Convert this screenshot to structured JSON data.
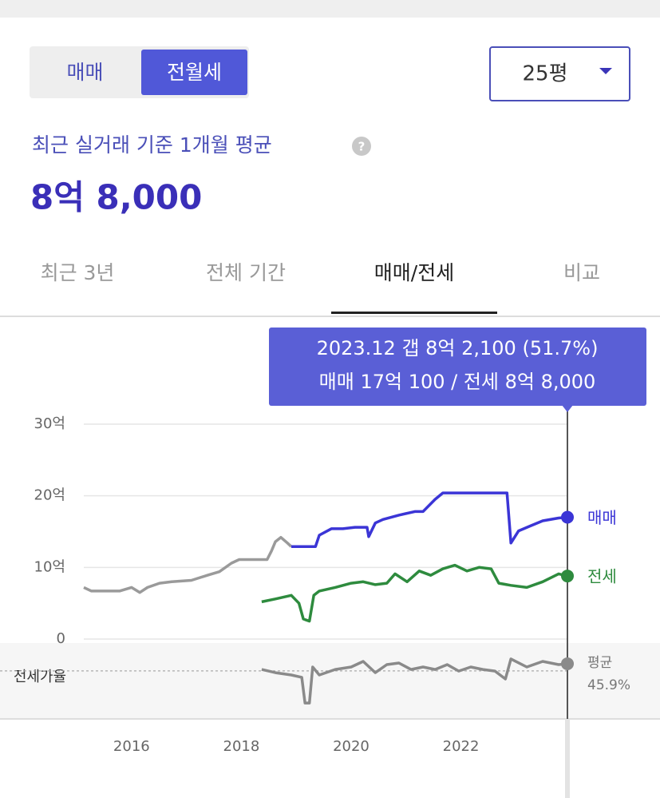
{
  "toggle": {
    "options": [
      "매매",
      "전월세"
    ],
    "active": 1
  },
  "dropdown": "25평",
  "summary": {
    "caption": "최근 실거래 기준 1개월 평균",
    "value": "8억 8,000"
  },
  "tabs": {
    "items": [
      "최근 3년",
      "전체 기간",
      "매매/전세",
      "비교"
    ],
    "active": 2
  },
  "tooltip": [
    "2023.12  갭 8억 2,100 (51.7%)",
    "매매 17억 100 / 전세 8억 8,000"
  ],
  "chart_data": {
    "type": "line",
    "xlim": [
      2015.13,
      2023.94
    ],
    "xticks": [
      2016,
      2018,
      2020,
      2022
    ],
    "ylim": [
      0,
      30
    ],
    "yticks": [
      0,
      {
        "value": 10,
        "label": "10억"
      },
      {
        "value": 20,
        "label": "20억"
      },
      {
        "value": 30,
        "label": "30억"
      }
    ],
    "grid": true,
    "series": [
      {
        "color": "#9a9a9a",
        "x": [
          2015.13,
          2015.27,
          2015.78,
          2016.0,
          2016.15,
          2016.29,
          2016.51,
          2016.73,
          2017.09,
          2017.38,
          2017.6,
          2017.82,
          2017.96,
          2018.47,
          2018.55,
          2018.62,
          2018.72,
          2018.84,
          2018.91
        ],
        "values": [
          7.2,
          6.7,
          6.7,
          7.2,
          6.5,
          7.2,
          7.8,
          8.0,
          8.2,
          8.9,
          9.4,
          10.6,
          11.1,
          11.1,
          12.3,
          13.6,
          14.2,
          13.4,
          12.9
        ]
      },
      {
        "name": "매매",
        "color": "#3b35d6",
        "x": [
          2018.91,
          2019.35,
          2019.42,
          2019.64,
          2019.85,
          2020.07,
          2020.29,
          2020.32,
          2020.44,
          2020.58,
          2020.87,
          2021.16,
          2021.31,
          2021.53,
          2021.67,
          2022.33,
          2022.84,
          2022.91,
          2023.05,
          2023.27,
          2023.49,
          2023.78,
          2023.94
        ],
        "values": [
          12.9,
          12.9,
          14.5,
          15.4,
          15.4,
          15.6,
          15.6,
          14.3,
          16.2,
          16.7,
          17.3,
          17.8,
          17.8,
          19.5,
          20.4,
          20.4,
          20.4,
          13.4,
          15.1,
          15.8,
          16.5,
          16.9,
          17.01
        ]
      },
      {
        "name": "전세",
        "color": "#2e8b3e",
        "x": [
          2018.37,
          2018.62,
          2018.91,
          2019.05,
          2019.13,
          2019.24,
          2019.32,
          2019.42,
          2019.71,
          2020.0,
          2020.22,
          2020.44,
          2020.65,
          2020.8,
          2021.02,
          2021.24,
          2021.45,
          2021.67,
          2021.89,
          2022.11,
          2022.33,
          2022.55,
          2022.69,
          2022.91,
          2023.2,
          2023.49,
          2023.78,
          2023.94
        ],
        "values": [
          5.2,
          5.6,
          6.1,
          5.0,
          2.8,
          2.5,
          6.1,
          6.7,
          7.2,
          7.8,
          8.0,
          7.6,
          7.8,
          9.1,
          8.0,
          9.5,
          8.9,
          9.8,
          10.3,
          9.5,
          10.0,
          9.8,
          7.8,
          7.5,
          7.2,
          8.0,
          9.1,
          8.8
        ]
      }
    ],
    "ratio": {
      "label": "전세가율",
      "color": "#8a8a8a",
      "ylim": [
        7,
        68.5
      ],
      "x": [
        2018.37,
        2018.62,
        2018.91,
        2019.1,
        2019.16,
        2019.24,
        2019.3,
        2019.42,
        2019.71,
        2020.0,
        2020.22,
        2020.44,
        2020.65,
        2020.87,
        2021.09,
        2021.31,
        2021.53,
        2021.75,
        2021.96,
        2022.18,
        2022.4,
        2022.62,
        2022.81,
        2022.91,
        2023.2,
        2023.49,
        2023.78,
        2023.94
      ],
      "values": [
        47.1,
        44.5,
        42.6,
        40.7,
        19.9,
        19.9,
        49.1,
        42.6,
        47.1,
        49.1,
        53.6,
        44.5,
        51.0,
        52.3,
        47.1,
        49.1,
        47.1,
        51.0,
        45.8,
        49.1,
        47.1,
        45.8,
        39.4,
        55.6,
        49.1,
        53.6,
        51.0,
        51.7
      ],
      "average": {
        "name": "평균",
        "value": 45.9,
        "value_label": "45.9%"
      }
    }
  }
}
